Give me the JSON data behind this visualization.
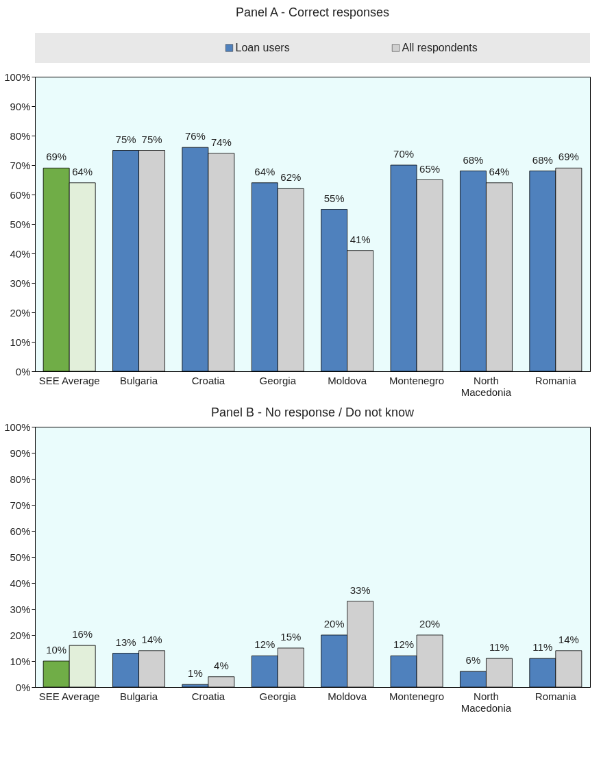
{
  "chart_data": [
    {
      "type": "bar",
      "title": "Panel A - Correct responses",
      "categories": [
        "SEE Average",
        "Bulgaria",
        "Croatia",
        "Georgia",
        "Moldova",
        "Montenegro",
        "North Macedonia",
        "Romania"
      ],
      "series": [
        {
          "name": "Loan users",
          "color": "#4f81bd",
          "colors": [
            "#70ad47",
            "#4f81bd",
            "#4f81bd",
            "#4f81bd",
            "#4f81bd",
            "#4f81bd",
            "#4f81bd",
            "#4f81bd"
          ],
          "values": [
            69,
            75,
            76,
            64,
            55,
            70,
            68,
            68
          ],
          "value_labels": [
            "69%",
            "75%",
            "76%",
            "64%",
            "55%",
            "70%",
            "68%",
            "68%"
          ]
        },
        {
          "name": "All respondents",
          "color": "#d0d0d0",
          "colors": [
            "#e2efda",
            "#d0d0d0",
            "#d0d0d0",
            "#d0d0d0",
            "#d0d0d0",
            "#d0d0d0",
            "#d0d0d0",
            "#d0d0d0"
          ],
          "values": [
            64,
            75,
            74,
            62,
            41,
            65,
            64,
            69
          ],
          "value_labels": [
            "64%",
            "75%",
            "74%",
            "62%",
            "41%",
            "65%",
            "64%",
            "69%"
          ]
        }
      ],
      "ylim": [
        0,
        100
      ],
      "yticks": [
        {
          "value": 0,
          "label": "0%"
        },
        {
          "value": 10,
          "label": "10%"
        },
        {
          "value": 20,
          "label": "20%"
        },
        {
          "value": 30,
          "label": "30%"
        },
        {
          "value": 40,
          "label": "40%"
        },
        {
          "value": 50,
          "label": "50%"
        },
        {
          "value": 60,
          "label": "60%"
        },
        {
          "value": 70,
          "label": "70%"
        },
        {
          "value": 80,
          "label": "80%"
        },
        {
          "value": 90,
          "label": "90%"
        },
        {
          "value": 100,
          "label": "100%"
        }
      ],
      "legend": "top",
      "grid": false
    },
    {
      "type": "bar",
      "title": "Panel B - No response / Do not know",
      "categories": [
        "SEE Average",
        "Bulgaria",
        "Croatia",
        "Georgia",
        "Moldova",
        "Montenegro",
        "North Macedonia",
        "Romania"
      ],
      "series": [
        {
          "colors": [
            "#70ad47",
            "#4f81bd",
            "#4f81bd",
            "#4f81bd",
            "#4f81bd",
            "#4f81bd",
            "#4f81bd",
            "#4f81bd"
          ],
          "values": [
            10,
            13,
            1,
            12,
            20,
            12,
            6,
            11
          ],
          "value_labels": [
            "10%",
            "13%",
            "1%",
            "12%",
            "20%",
            "12%",
            "6%",
            "11%"
          ]
        },
        {
          "colors": [
            "#e2efda",
            "#d0d0d0",
            "#d0d0d0",
            "#d0d0d0",
            "#d0d0d0",
            "#d0d0d0",
            "#d0d0d0",
            "#d0d0d0"
          ],
          "values": [
            16,
            14,
            4,
            15,
            33,
            20,
            11,
            14
          ],
          "value_labels": [
            "16%",
            "14%",
            "4%",
            "15%",
            "33%",
            "20%",
            "11%",
            "14%"
          ]
        }
      ],
      "ylim": [
        0,
        100
      ],
      "yticks": [
        {
          "value": 0,
          "label": "0%"
        },
        {
          "value": 10,
          "label": "10%"
        },
        {
          "value": 20,
          "label": "20%"
        },
        {
          "value": 30,
          "label": "30%"
        },
        {
          "value": 40,
          "label": "40%"
        },
        {
          "value": 50,
          "label": "50%"
        },
        {
          "value": 60,
          "label": "60%"
        },
        {
          "value": 70,
          "label": "70%"
        },
        {
          "value": 80,
          "label": "80%"
        },
        {
          "value": 90,
          "label": "90%"
        },
        {
          "value": 100,
          "label": "100%"
        }
      ],
      "grid": false
    }
  ]
}
